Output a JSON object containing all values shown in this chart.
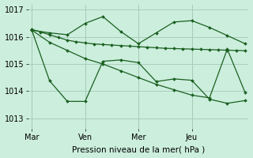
{
  "xlabel": "Pression niveau de la mer( hPa )",
  "bg_color": "#cceedd",
  "grid_color": "#aaccbb",
  "line_color": "#1a6020",
  "ylim": [
    1012.6,
    1017.2
  ],
  "xlim": [
    -0.2,
    12.2
  ],
  "xtick_labels": [
    "Mar",
    "Ven",
    "Mer",
    "Jeu"
  ],
  "xtick_positions": [
    0,
    3,
    6,
    9
  ],
  "ytick_values": [
    1013,
    1014,
    1015,
    1016,
    1017
  ],
  "vline_positions": [
    0,
    3,
    6,
    9
  ],
  "line1_x": [
    0,
    0.5,
    1,
    1.5,
    2,
    2.5,
    3,
    3.5,
    4,
    4.5,
    5,
    5.5,
    6,
    6.5,
    7,
    7.5,
    8,
    8.5,
    9,
    9.5,
    10,
    10.5,
    11,
    11.5,
    12
  ],
  "line1_y": [
    1016.28,
    1016.18,
    1016.08,
    1015.98,
    1015.88,
    1015.82,
    1015.78,
    1015.74,
    1015.72,
    1015.7,
    1015.68,
    1015.66,
    1015.64,
    1015.62,
    1015.6,
    1015.58,
    1015.57,
    1015.56,
    1015.55,
    1015.54,
    1015.53,
    1015.52,
    1015.51,
    1015.5,
    1015.49
  ],
  "line2_x": [
    0,
    1,
    2,
    3,
    4,
    5,
    6,
    7,
    8,
    9,
    10,
    11,
    12
  ],
  "line2_y": [
    1016.25,
    1016.15,
    1016.08,
    1016.5,
    1016.75,
    1016.2,
    1015.75,
    1016.15,
    1016.55,
    1016.6,
    1016.35,
    1016.05,
    1015.75
  ],
  "line3_x": [
    0,
    1,
    2,
    3,
    4,
    5,
    6,
    7,
    8,
    9,
    10,
    11,
    12
  ],
  "line3_y": [
    1016.25,
    1014.38,
    1013.62,
    1013.62,
    1015.1,
    1015.15,
    1015.05,
    1014.35,
    1014.45,
    1014.4,
    1013.7,
    1013.55,
    1013.65
  ],
  "line4_x": [
    0,
    1,
    2,
    3,
    4,
    5,
    6,
    7,
    8,
    9,
    10,
    11,
    12
  ],
  "line4_y": [
    1016.25,
    1015.8,
    1015.5,
    1015.2,
    1015.0,
    1014.75,
    1014.5,
    1014.25,
    1014.05,
    1013.85,
    1013.75,
    1015.55,
    1013.95
  ]
}
